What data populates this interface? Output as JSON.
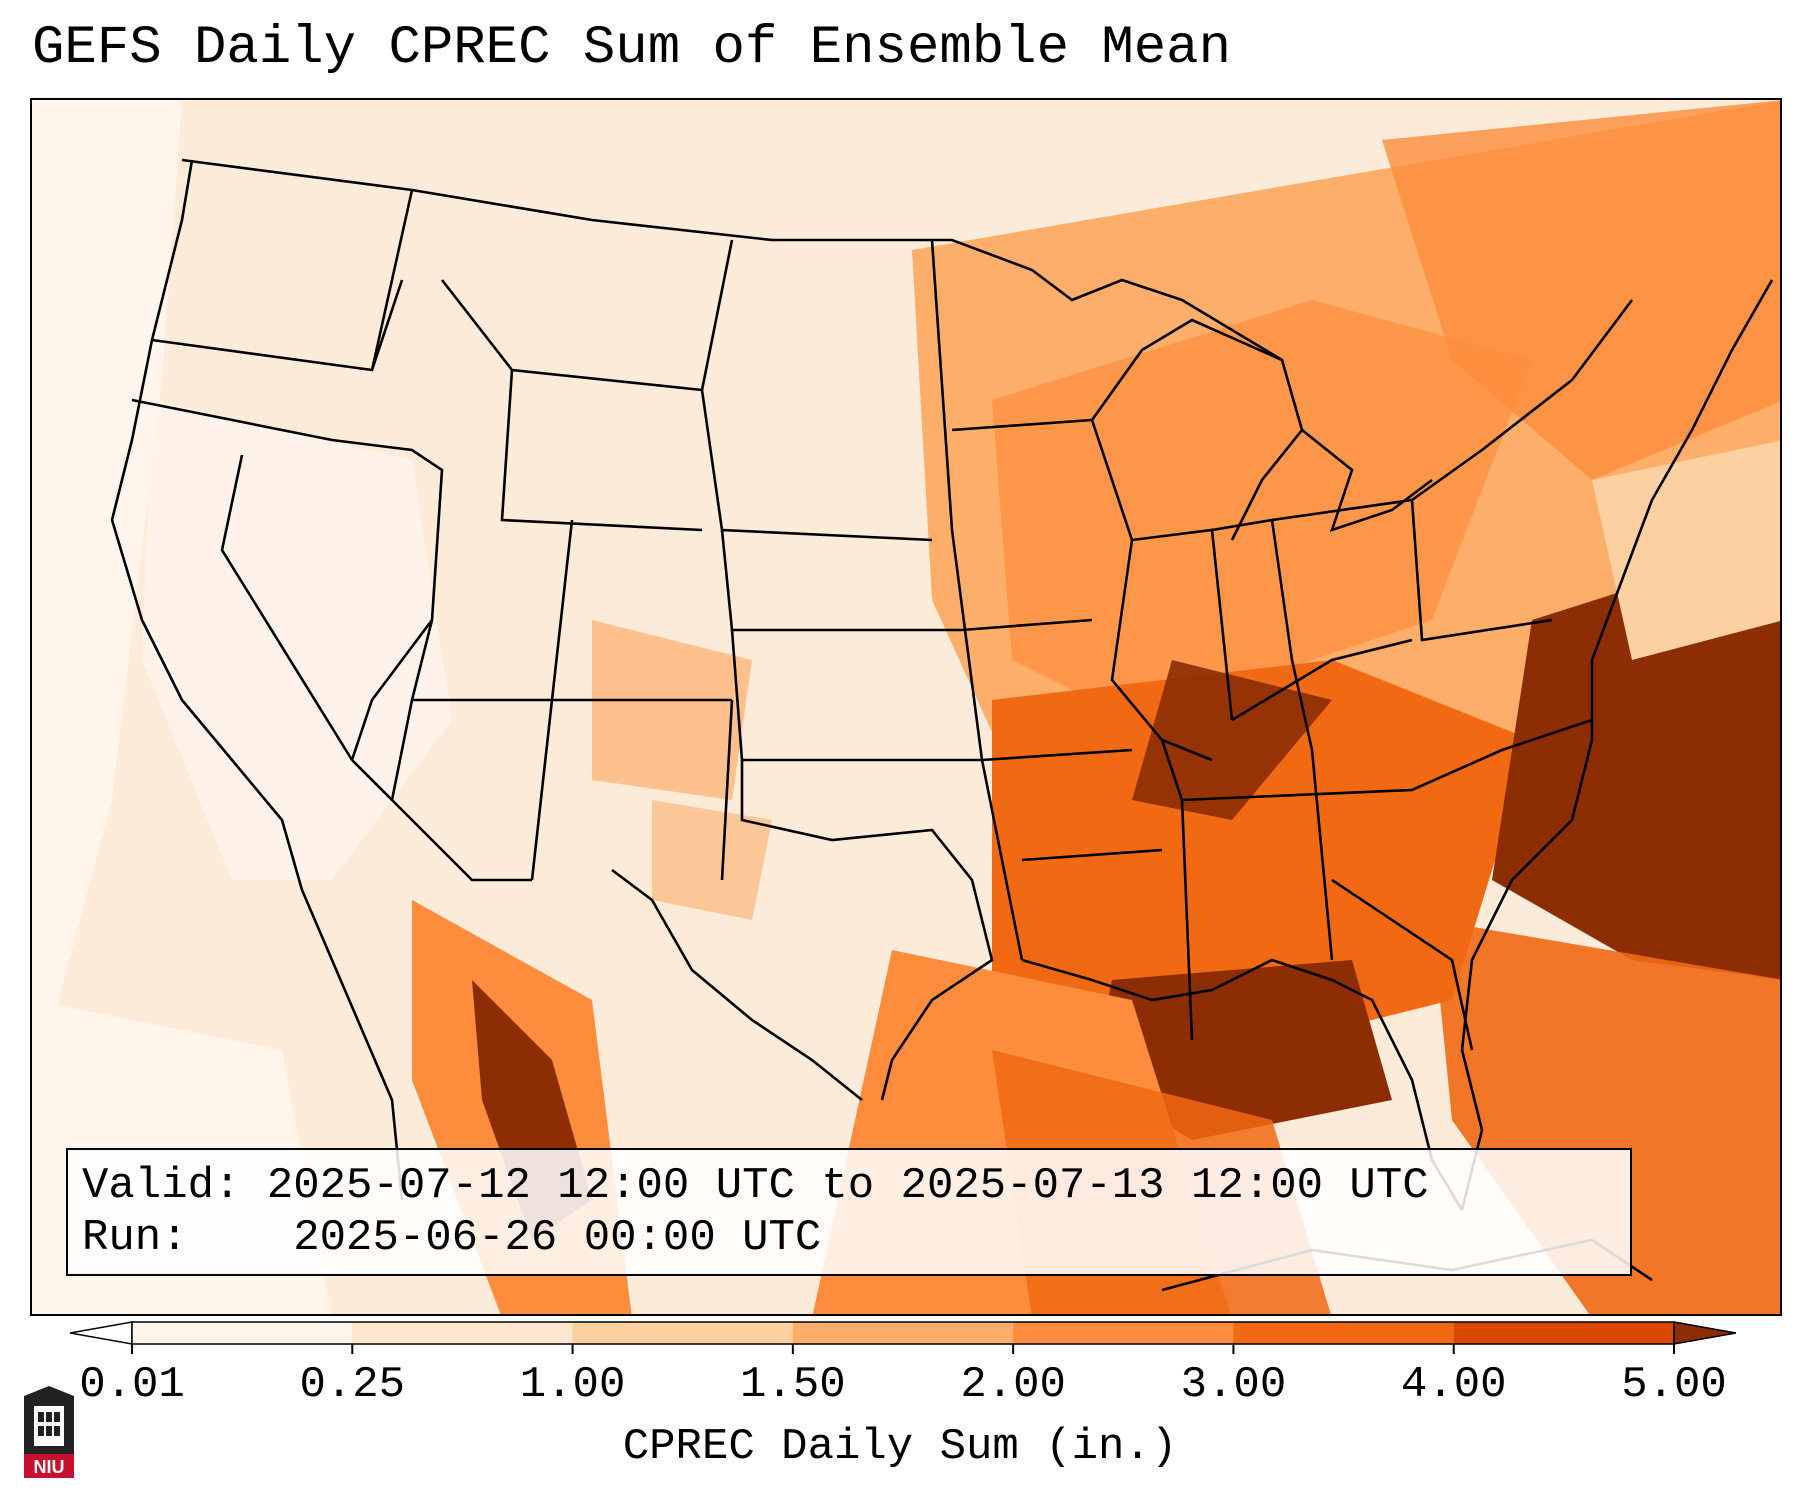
{
  "title": "GEFS Daily CPREC Sum of Ensemble Mean",
  "info": {
    "valid_label": "Valid:",
    "valid_value": "2025-07-12 12:00 UTC to 2025-07-13 12:00 UTC",
    "run_label": "Run:",
    "run_value": "2025-06-26 00:00 UTC"
  },
  "colorbar": {
    "label": "CPREC Daily Sum (in.)",
    "ticks": [
      "0.01",
      "0.25",
      "1.00",
      "1.50",
      "2.00",
      "3.00",
      "4.00",
      "5.00"
    ],
    "colors": [
      "#fff5eb",
      "#fee6ce",
      "#fdd0a2",
      "#fdae6b",
      "#fd8d3c",
      "#f16913",
      "#d94801",
      "#8c2d04"
    ],
    "under_color": "#ffffff",
    "over_color": "#8c2d04",
    "extend": "both"
  },
  "map": {
    "region": "Contiguous United States",
    "land_background": "#fdebd9",
    "heavy_precip_areas": [
      "Gulf of Mexico",
      "Atlantic off Carolinas",
      "Tennessee Valley",
      "Sierra Madre Occidental"
    ]
  },
  "logo": {
    "text": "NIU",
    "color": "#c8102e"
  }
}
